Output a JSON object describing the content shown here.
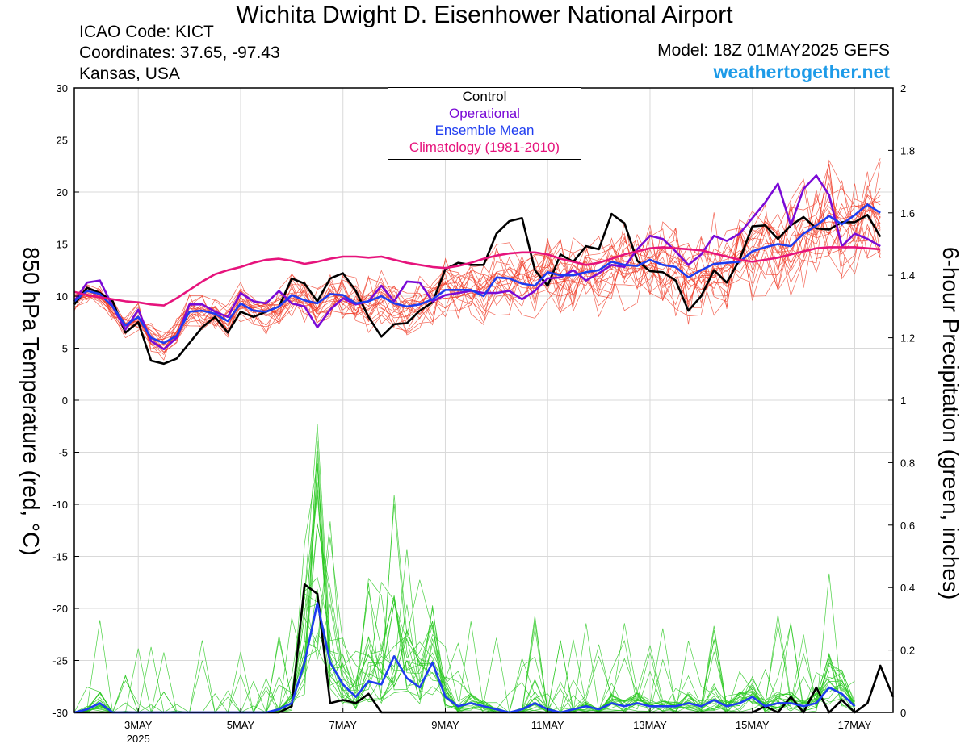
{
  "header": {
    "title": "Wichita Dwight D. Eisenhower National Airport",
    "icao": "ICAO Code: KICT",
    "coordinates": "Coordinates: 37.65, -97.43",
    "region": "Kansas, USA",
    "model": "Model: 18Z 01MAY2025 GEFS",
    "site": "weathertogether.net"
  },
  "colors": {
    "control": "#000000",
    "operational": "#7a0ad6",
    "ensemble_mean": "#1e3cf0",
    "climatology": "#e6137c",
    "members_temp": "#f03c28",
    "members_precip": "#28c81e",
    "site": "#1e9be8"
  },
  "chart_data": {
    "type": "line",
    "ylabel": "850 hPa Temperature (red, °C)",
    "y2label": "6-hour Precipitation (green, inches)",
    "x_ticks": [
      "3MAY",
      "5MAY",
      "7MAY",
      "9MAY",
      "11MAY",
      "13MAY",
      "15MAY",
      "17MAY"
    ],
    "x_sub": "2025",
    "x_tick_days": [
      3,
      5,
      7,
      9,
      11,
      13,
      15,
      17
    ],
    "x_range_days": [
      1.75,
      17.75
    ],
    "ylim": [
      -30,
      30
    ],
    "y_ticks": [
      30,
      25,
      20,
      15,
      10,
      5,
      0,
      -5,
      -10,
      -15,
      -20,
      -25,
      -30
    ],
    "y2lim": [
      0,
      2
    ],
    "y2_ticks": [
      "2",
      "1.8",
      "1.6",
      "1.4",
      "1.2",
      "1",
      "0.8",
      "0.6",
      "0.4",
      "0.2",
      "0"
    ],
    "legend": {
      "entries": [
        "Control",
        "Operational",
        "Ensemble Mean",
        "Climatology (1981-2010)"
      ],
      "placement": "top-center"
    },
    "series": [
      {
        "name": "Control",
        "kind": "temperature",
        "values": [
          9.2,
          10.8,
          10.3,
          9.5,
          6.5,
          7.5,
          3.8,
          3.5,
          4.0,
          5.5,
          7.0,
          8.0,
          6.5,
          8.5,
          8.0,
          8.5,
          9.0,
          11.7,
          11.2,
          9.5,
          11.7,
          12.2,
          10.5,
          8.0,
          6.1,
          7.3,
          7.4,
          8.6,
          9.4,
          12.6,
          13.2,
          13.0,
          13.0,
          16.0,
          17.2,
          17.5,
          12.5,
          11.0,
          14.0,
          13.3,
          14.8,
          14.5,
          17.9,
          17.0,
          13.4,
          12.4,
          12.3,
          11.5,
          8.6,
          10.0,
          12.5,
          11.3,
          13.5,
          16.7,
          16.8,
          15.5,
          16.8,
          17.6,
          16.5,
          16.4,
          17.1,
          17.1,
          17.8,
          15.7
        ]
      },
      {
        "name": "Operational",
        "kind": "temperature",
        "values": [
          9.5,
          11.3,
          11.5,
          9.0,
          6.8,
          8.7,
          5.7,
          4.9,
          6.0,
          9.2,
          9.2,
          8.5,
          8.0,
          10.3,
          9.5,
          9.3,
          10.5,
          9.3,
          9.0,
          7.0,
          8.7,
          9.8,
          9.2,
          9.5,
          11.0,
          9.5,
          11.4,
          11.3,
          9.5,
          10.1,
          10.3,
          10.5,
          10.3,
          10.3,
          10.5,
          9.7,
          10.5,
          11.7,
          11.8,
          12.5,
          11.5,
          12.2,
          13.0,
          12.8,
          14.5,
          15.8,
          15.5,
          14.3,
          13.0,
          14.0,
          15.8,
          15.3,
          16.0,
          17.5,
          19.0,
          20.8,
          16.8,
          20.3,
          21.6,
          19.7,
          14.8,
          16.0,
          15.5,
          14.8
        ]
      },
      {
        "name": "Ensemble Mean",
        "kind": "temperature",
        "values": [
          9.5,
          10.5,
          10.2,
          9.0,
          7.2,
          8.0,
          6.0,
          5.5,
          6.2,
          8.5,
          8.6,
          8.3,
          7.6,
          9.3,
          8.6,
          8.5,
          9.0,
          10.1,
          9.6,
          9.3,
          10.2,
          10.1,
          9.3,
          9.5,
          10.0,
          9.3,
          9.0,
          9.2,
          9.7,
          10.6,
          10.6,
          10.6,
          10.0,
          11.8,
          11.7,
          11.2,
          11.0,
          12.3,
          12.0,
          12.0,
          12.3,
          12.5,
          13.3,
          13.0,
          12.9,
          13.5,
          13.0,
          12.8,
          11.8,
          12.5,
          13.1,
          13.2,
          13.3,
          14.3,
          14.7,
          15.0,
          14.8,
          16.0,
          16.8,
          17.7,
          16.9,
          17.8,
          18.8,
          18.0
        ]
      },
      {
        "name": "Climatology (1981-2010)",
        "kind": "temperature",
        "values": [
          10.4,
          10.1,
          9.9,
          9.7,
          9.5,
          9.4,
          9.2,
          9.1,
          9.8,
          10.6,
          11.4,
          12.1,
          12.5,
          12.8,
          13.2,
          13.5,
          13.6,
          13.4,
          13.1,
          13.3,
          13.6,
          13.8,
          13.8,
          13.7,
          13.8,
          13.5,
          13.2,
          13.0,
          12.8,
          12.7,
          12.9,
          13.2,
          13.6,
          13.9,
          14.1,
          14.2,
          14.2,
          14.0,
          13.6,
          13.3,
          13.0,
          13.2,
          13.6,
          14.0,
          14.3,
          14.6,
          14.7,
          14.6,
          14.5,
          14.4,
          14.1,
          13.8,
          13.5,
          13.3,
          13.5,
          13.7,
          14.0,
          14.3,
          14.6,
          14.7,
          14.7,
          14.7,
          14.6,
          14.5
        ]
      },
      {
        "name": "Control",
        "kind": "precipitation",
        "values": [
          0,
          0,
          0,
          0,
          0,
          0,
          0,
          0,
          0,
          0,
          0,
          0,
          0,
          0,
          0,
          0,
          0,
          0.02,
          0.41,
          0.38,
          0.03,
          0.04,
          0.03,
          0.06,
          0.0,
          0,
          0,
          0,
          0,
          0,
          0,
          0,
          0,
          0,
          0,
          0,
          0,
          0,
          0,
          0,
          0,
          0,
          0,
          0,
          0,
          0,
          0,
          0,
          0,
          0,
          0,
          0,
          0,
          0,
          0.02,
          0.0,
          0.05,
          0.0,
          0.08,
          0.0,
          0.04,
          0.0,
          0.03,
          0.15,
          0.05
        ]
      },
      {
        "name": "Ensemble Mean",
        "kind": "precipitation",
        "values": [
          0,
          0.01,
          0.03,
          0.0,
          0,
          0,
          0,
          0,
          0,
          0,
          0,
          0,
          0,
          0,
          0,
          0,
          0.01,
          0.03,
          0.16,
          0.35,
          0.16,
          0.09,
          0.05,
          0.1,
          0.09,
          0.18,
          0.11,
          0.08,
          0.16,
          0.05,
          0.02,
          0.03,
          0.02,
          0.01,
          0.0,
          0.01,
          0.03,
          0.01,
          0.0,
          0.01,
          0.02,
          0.01,
          0.03,
          0.02,
          0.03,
          0.02,
          0.02,
          0.02,
          0.03,
          0.02,
          0.04,
          0.02,
          0.03,
          0.05,
          0.02,
          0.03,
          0.03,
          0.02,
          0.03,
          0.08,
          0.06,
          0.02
        ]
      }
    ]
  }
}
